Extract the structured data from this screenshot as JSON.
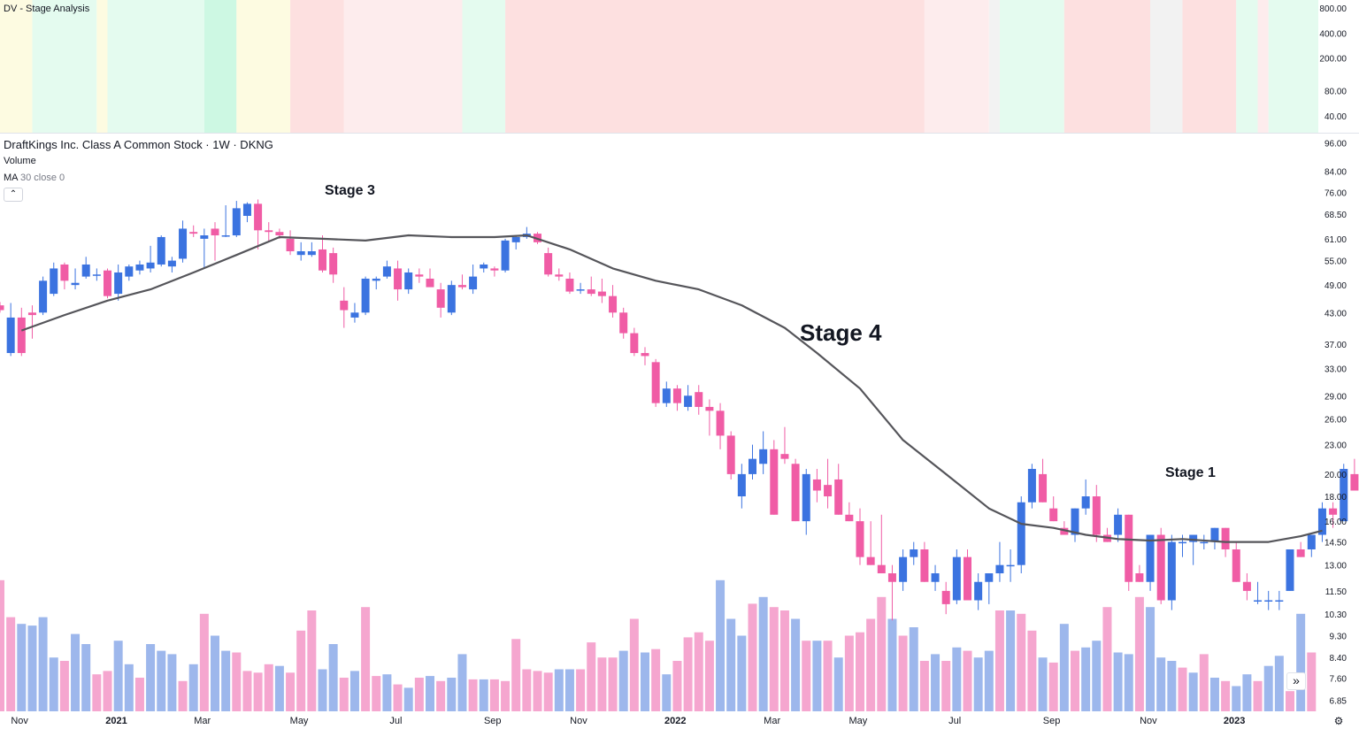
{
  "panel": {
    "label": "DV - Stage Analysis"
  },
  "header": {
    "title": "DraftKings Inc. Class A Common Stock · 1W · DKNG",
    "volume_label": "Volume",
    "ma_label": "MA",
    "ma_params": "30 close 0"
  },
  "annotations": [
    {
      "text": "Stage 3",
      "size": "medium"
    },
    {
      "text": "Stage 4",
      "size": "large"
    },
    {
      "text": "Stage 1",
      "size": "medium"
    }
  ],
  "colors": {
    "up": "#3b73e0",
    "down": "#f05ca5",
    "ma": "#55555a",
    "vol_up": "#9db7ec",
    "vol_down": "#f5a6cf"
  },
  "icons": {
    "collapse": "chevron-up-icon",
    "scroll": "double-chevron-right-icon",
    "settings": "gear-icon"
  },
  "chart_data": {
    "type": "candlestick",
    "symbol": "DKNG",
    "interval": "1W",
    "x_ticks": [
      "Nov",
      "2021",
      "Mar",
      "May",
      "Jul",
      "Sep",
      "Nov",
      "2022",
      "Mar",
      "May",
      "Jul",
      "Sep",
      "Nov",
      "2023"
    ],
    "price_ticks": [
      "96.00",
      "84.00",
      "76.00",
      "68.50",
      "61.00",
      "55.00",
      "49.00",
      "43.00",
      "37.00",
      "33.00",
      "29.00",
      "26.00",
      "23.00",
      "20.00",
      "18.00",
      "16.00",
      "14.50",
      "13.00",
      "11.50",
      "10.30",
      "9.30",
      "8.40",
      "7.60",
      "6.85"
    ],
    "panel_ticks": [
      "800.00",
      "400.00",
      "200.00",
      "80.00",
      "40.00"
    ],
    "price_scale": "log",
    "stage_bands": [
      {
        "color": "#fdfbe1",
        "weeks": 3
      },
      {
        "color": "#e4fbef",
        "weeks": 6
      },
      {
        "color": "#fdfbe1",
        "weeks": 1
      },
      {
        "color": "#e4fbef",
        "weeks": 9
      },
      {
        "color": "#cdf8e3",
        "weeks": 3
      },
      {
        "color": "#fdfbe1",
        "weeks": 5
      },
      {
        "color": "#fde0e0",
        "weeks": 5
      },
      {
        "color": "#fdeced",
        "weeks": 11
      },
      {
        "color": "#e4fbef",
        "weeks": 4
      },
      {
        "color": "#fde0e0",
        "weeks": 39
      },
      {
        "color": "#fdeced",
        "weeks": 6
      },
      {
        "color": "#f2f2f2",
        "weeks": 1
      },
      {
        "color": "#e4fbef",
        "weeks": 6
      },
      {
        "color": "#fde0e0",
        "weeks": 8
      },
      {
        "color": "#f2f2f2",
        "weeks": 3
      },
      {
        "color": "#fde0e0",
        "weeks": 5
      },
      {
        "color": "#e4fbef",
        "weeks": 2
      },
      {
        "color": "#fdeced",
        "weeks": 1
      },
      {
        "color": "#e4fbef",
        "weeks": 5
      }
    ],
    "candles": [
      [
        44.5,
        45.2,
        43.0,
        43.5
      ],
      [
        35.5,
        45.0,
        35.0,
        42.0
      ],
      [
        42.0,
        44.0,
        35.0,
        35.5
      ],
      [
        43.0,
        44.5,
        38.0,
        42.5
      ],
      [
        43.0,
        51.0,
        42.5,
        50.0
      ],
      [
        47.0,
        54.5,
        46.5,
        53.0
      ],
      [
        54.0,
        54.5,
        48.0,
        50.0
      ],
      [
        49.0,
        53.0,
        48.0,
        49.5
      ],
      [
        51.0,
        56.0,
        50.5,
        54.0
      ],
      [
        51.5,
        53.0,
        50.0,
        51.5
      ],
      [
        52.5,
        53.0,
        46.0,
        46.5
      ],
      [
        47.0,
        54.0,
        45.5,
        52.0
      ],
      [
        51.0,
        54.0,
        50.0,
        53.5
      ],
      [
        52.5,
        55.0,
        51.5,
        54.0
      ],
      [
        53.0,
        59.0,
        52.0,
        54.5
      ],
      [
        54.0,
        62.0,
        53.5,
        61.5
      ],
      [
        53.5,
        56.0,
        52.0,
        55.0
      ],
      [
        55.5,
        66.5,
        54.5,
        64.0
      ],
      [
        63.0,
        65.0,
        61.5,
        62.5
      ],
      [
        61.0,
        64.0,
        53.0,
        62.0
      ],
      [
        64.0,
        66.0,
        55.0,
        62.0
      ],
      [
        62.0,
        71.5,
        61.5,
        62.0
      ],
      [
        62.0,
        73.0,
        61.5,
        70.5
      ],
      [
        68.0,
        72.5,
        66.0,
        72.0
      ],
      [
        72.0,
        73.5,
        58.0,
        63.5
      ],
      [
        63.5,
        66.0,
        60.0,
        63.0
      ],
      [
        63.0,
        64.0,
        61.0,
        62.0
      ],
      [
        61.0,
        63.5,
        56.5,
        57.5
      ],
      [
        56.5,
        60.0,
        55.0,
        57.5
      ],
      [
        56.5,
        60.0,
        56.0,
        57.5
      ],
      [
        58.0,
        62.0,
        52.0,
        52.5
      ],
      [
        57.0,
        58.5,
        49.5,
        51.5
      ],
      [
        45.5,
        48.5,
        40.0,
        43.5
      ],
      [
        42.0,
        45.0,
        41.0,
        43.0
      ],
      [
        43.0,
        51.0,
        42.5,
        50.5
      ],
      [
        50.0,
        51.0,
        48.0,
        50.5
      ],
      [
        51.0,
        55.0,
        50.5,
        53.5
      ],
      [
        53.0,
        55.0,
        45.5,
        48.0
      ],
      [
        48.0,
        53.0,
        47.0,
        52.0
      ],
      [
        51.5,
        53.0,
        49.5,
        51.0
      ],
      [
        50.5,
        53.0,
        49.0,
        48.5
      ],
      [
        48.0,
        49.5,
        42.0,
        44.0
      ],
      [
        43.0,
        50.0,
        42.5,
        49.0
      ],
      [
        49.0,
        51.5,
        48.0,
        48.5
      ],
      [
        48.0,
        54.0,
        47.0,
        51.0
      ],
      [
        53.0,
        54.5,
        52.0,
        54.0
      ],
      [
        53.0,
        53.5,
        51.0,
        52.5
      ],
      [
        52.5,
        61.0,
        52.0,
        60.5
      ],
      [
        60.0,
        62.0,
        58.0,
        61.5
      ],
      [
        61.5,
        64.5,
        61.0,
        62.5
      ],
      [
        62.5,
        63.0,
        59.5,
        60.0
      ],
      [
        57.0,
        58.5,
        51.0,
        51.5
      ],
      [
        51.5,
        53.0,
        50.0,
        51.0
      ],
      [
        50.5,
        52.0,
        47.0,
        47.5
      ],
      [
        48.0,
        49.5,
        47.0,
        48.0
      ],
      [
        48.0,
        51.0,
        46.5,
        47.0
      ],
      [
        47.5,
        50.5,
        45.0,
        46.5
      ],
      [
        46.5,
        49.0,
        42.0,
        43.0
      ],
      [
        43.0,
        44.0,
        38.0,
        39.0
      ],
      [
        39.0,
        40.0,
        35.0,
        35.5
      ],
      [
        35.5,
        36.5,
        33.5,
        35.0
      ],
      [
        34.0,
        34.5,
        27.5,
        28.0
      ],
      [
        28.0,
        31.0,
        27.5,
        30.0
      ],
      [
        30.0,
        30.5,
        27.0,
        28.0
      ],
      [
        27.5,
        30.5,
        27.0,
        29.0
      ],
      [
        29.5,
        30.5,
        26.5,
        27.5
      ],
      [
        27.5,
        28.5,
        24.0,
        27.0
      ],
      [
        27.0,
        28.0,
        22.5,
        24.0
      ],
      [
        24.0,
        24.5,
        19.5,
        20.0
      ],
      [
        18.0,
        21.0,
        17.0,
        20.0
      ],
      [
        20.0,
        23.0,
        19.5,
        21.5
      ],
      [
        21.0,
        24.5,
        20.0,
        22.5
      ],
      [
        22.5,
        23.5,
        16.5,
        16.5
      ],
      [
        22.0,
        25.0,
        21.0,
        21.5
      ],
      [
        21.0,
        21.5,
        16.0,
        16.0
      ],
      [
        16.0,
        20.5,
        15.0,
        20.0
      ],
      [
        19.5,
        20.5,
        17.5,
        18.5
      ],
      [
        19.0,
        21.5,
        17.0,
        18.0
      ],
      [
        19.5,
        21.0,
        16.5,
        16.5
      ],
      [
        16.5,
        17.5,
        16.0,
        16.0
      ],
      [
        16.0,
        17.0,
        13.0,
        13.5
      ],
      [
        13.5,
        16.0,
        13.0,
        13.0
      ],
      [
        13.0,
        16.5,
        12.5,
        12.5
      ],
      [
        12.5,
        13.0,
        10.0,
        12.0
      ],
      [
        12.0,
        14.0,
        11.5,
        13.5
      ],
      [
        13.5,
        14.5,
        13.0,
        14.0
      ],
      [
        14.0,
        14.5,
        12.0,
        12.0
      ],
      [
        12.0,
        13.0,
        11.5,
        12.5
      ],
      [
        11.5,
        12.0,
        10.3,
        10.8
      ],
      [
        11.0,
        14.0,
        10.8,
        13.5
      ],
      [
        13.5,
        14.0,
        11.0,
        11.0
      ],
      [
        11.0,
        12.5,
        10.5,
        12.0
      ],
      [
        12.0,
        12.5,
        10.8,
        12.5
      ],
      [
        12.5,
        14.5,
        12.0,
        13.0
      ],
      [
        13.0,
        14.0,
        12.0,
        13.0
      ],
      [
        13.0,
        18.0,
        12.5,
        17.5
      ],
      [
        17.5,
        21.0,
        17.0,
        20.5
      ],
      [
        20.0,
        21.5,
        17.5,
        17.5
      ],
      [
        17.0,
        18.0,
        16.0,
        16.0
      ],
      [
        15.5,
        16.0,
        15.0,
        15.0
      ],
      [
        15.0,
        17.0,
        14.5,
        17.0
      ],
      [
        17.0,
        19.5,
        16.5,
        18.0
      ],
      [
        18.0,
        19.0,
        14.5,
        15.0
      ],
      [
        15.0,
        15.5,
        14.5,
        14.5
      ],
      [
        15.0,
        17.0,
        14.5,
        16.5
      ],
      [
        16.5,
        16.5,
        11.5,
        12.0
      ],
      [
        12.5,
        13.0,
        12.0,
        12.0
      ],
      [
        12.0,
        15.0,
        11.5,
        15.0
      ],
      [
        15.0,
        15.5,
        10.8,
        11.0
      ],
      [
        11.0,
        15.0,
        10.5,
        14.5
      ],
      [
        14.5,
        15.0,
        13.5,
        14.5
      ],
      [
        14.5,
        15.0,
        13.0,
        15.0
      ],
      [
        14.5,
        15.0,
        14.0,
        14.5
      ],
      [
        14.5,
        15.5,
        14.0,
        15.5
      ],
      [
        15.5,
        15.5,
        13.5,
        14.0
      ],
      [
        14.0,
        14.5,
        12.0,
        12.0
      ],
      [
        12.0,
        12.5,
        11.0,
        11.5
      ],
      [
        11.0,
        12.0,
        10.8,
        11.0
      ],
      [
        11.0,
        11.5,
        10.5,
        11.0
      ],
      [
        11.0,
        11.5,
        10.5,
        11.0
      ],
      [
        11.5,
        14.0,
        11.5,
        14.0
      ],
      [
        14.0,
        14.5,
        13.5,
        13.5
      ],
      [
        14.0,
        15.0,
        13.5,
        15.0
      ],
      [
        15.0,
        17.5,
        14.5,
        17.0
      ],
      [
        17.0,
        17.5,
        15.5,
        16.5
      ],
      [
        16.0,
        21.0,
        16.0,
        20.5
      ],
      [
        20.0,
        21.5,
        18.5,
        18.5
      ]
    ],
    "ma30_points": [
      [
        2,
        39.5
      ],
      [
        6,
        42.5
      ],
      [
        10,
        45.5
      ],
      [
        14,
        48.0
      ],
      [
        18,
        52.0
      ],
      [
        22,
        56.5
      ],
      [
        26,
        61.5
      ],
      [
        30,
        61.0
      ],
      [
        34,
        60.5
      ],
      [
        38,
        62.0
      ],
      [
        42,
        61.5
      ],
      [
        46,
        61.5
      ],
      [
        49,
        62.0
      ],
      [
        53,
        58.0
      ],
      [
        57,
        53.0
      ],
      [
        61,
        50.0
      ],
      [
        65,
        48.0
      ],
      [
        69,
        44.5
      ],
      [
        73,
        40.0
      ],
      [
        76,
        35.5
      ],
      [
        80,
        30.0
      ],
      [
        84,
        23.5
      ],
      [
        88,
        20.0
      ],
      [
        92,
        17.0
      ],
      [
        95,
        15.8
      ],
      [
        98,
        15.5
      ],
      [
        101,
        15.0
      ],
      [
        104,
        14.7
      ],
      [
        107,
        14.6
      ],
      [
        110,
        14.7
      ],
      [
        114,
        14.5
      ],
      [
        118,
        14.5
      ],
      [
        121,
        14.9
      ],
      [
        123,
        15.3
      ]
    ],
    "volumes": [
      [
        0,
        0.78
      ],
      [
        0,
        0.56
      ],
      [
        1,
        0.52
      ],
      [
        1,
        0.51
      ],
      [
        1,
        0.56
      ],
      [
        1,
        0.32
      ],
      [
        0,
        0.3
      ],
      [
        1,
        0.46
      ],
      [
        1,
        0.4
      ],
      [
        0,
        0.22
      ],
      [
        0,
        0.24
      ],
      [
        1,
        0.42
      ],
      [
        1,
        0.28
      ],
      [
        0,
        0.2
      ],
      [
        1,
        0.4
      ],
      [
        1,
        0.36
      ],
      [
        1,
        0.34
      ],
      [
        0,
        0.18
      ],
      [
        1,
        0.28
      ],
      [
        0,
        0.58
      ],
      [
        1,
        0.45
      ],
      [
        1,
        0.36
      ],
      [
        0,
        0.35
      ],
      [
        0,
        0.24
      ],
      [
        0,
        0.23
      ],
      [
        0,
        0.28
      ],
      [
        1,
        0.27
      ],
      [
        0,
        0.23
      ],
      [
        0,
        0.48
      ],
      [
        0,
        0.6
      ],
      [
        1,
        0.25
      ],
      [
        1,
        0.4
      ],
      [
        0,
        0.2
      ],
      [
        1,
        0.24
      ],
      [
        0,
        0.62
      ],
      [
        0,
        0.21
      ],
      [
        1,
        0.22
      ],
      [
        0,
        0.16
      ],
      [
        1,
        0.14
      ],
      [
        0,
        0.2
      ],
      [
        1,
        0.21
      ],
      [
        0,
        0.18
      ],
      [
        1,
        0.2
      ],
      [
        1,
        0.34
      ],
      [
        0,
        0.19
      ],
      [
        1,
        0.19
      ],
      [
        0,
        0.19
      ],
      [
        0,
        0.18
      ],
      [
        0,
        0.43
      ],
      [
        0,
        0.25
      ],
      [
        0,
        0.24
      ],
      [
        0,
        0.23
      ],
      [
        1,
        0.25
      ],
      [
        1,
        0.25
      ],
      [
        0,
        0.25
      ],
      [
        0,
        0.41
      ],
      [
        0,
        0.32
      ],
      [
        0,
        0.32
      ],
      [
        1,
        0.36
      ],
      [
        0,
        0.55
      ],
      [
        1,
        0.35
      ],
      [
        0,
        0.37
      ],
      [
        1,
        0.22
      ],
      [
        0,
        0.3
      ],
      [
        0,
        0.44
      ],
      [
        0,
        0.47
      ],
      [
        0,
        0.42
      ],
      [
        1,
        0.78
      ],
      [
        1,
        0.55
      ],
      [
        1,
        0.45
      ],
      [
        0,
        0.64
      ],
      [
        1,
        0.68
      ],
      [
        0,
        0.62
      ],
      [
        0,
        0.6
      ],
      [
        1,
        0.55
      ],
      [
        0,
        0.42
      ],
      [
        1,
        0.42
      ],
      [
        0,
        0.42
      ],
      [
        1,
        0.32
      ],
      [
        0,
        0.45
      ],
      [
        0,
        0.47
      ],
      [
        0,
        0.55
      ],
      [
        0,
        0.68
      ],
      [
        1,
        0.55
      ],
      [
        0,
        0.45
      ],
      [
        1,
        0.5
      ],
      [
        0,
        0.3
      ],
      [
        1,
        0.34
      ],
      [
        0,
        0.3
      ],
      [
        1,
        0.38
      ],
      [
        0,
        0.36
      ],
      [
        1,
        0.32
      ],
      [
        1,
        0.36
      ],
      [
        0,
        0.6
      ],
      [
        1,
        0.6
      ],
      [
        0,
        0.58
      ],
      [
        0,
        0.48
      ],
      [
        1,
        0.32
      ],
      [
        0,
        0.29
      ],
      [
        1,
        0.52
      ],
      [
        0,
        0.36
      ],
      [
        1,
        0.38
      ],
      [
        1,
        0.42
      ],
      [
        0,
        0.62
      ],
      [
        1,
        0.35
      ],
      [
        1,
        0.34
      ],
      [
        0,
        0.68
      ],
      [
        1,
        0.62
      ],
      [
        1,
        0.32
      ],
      [
        1,
        0.3
      ],
      [
        0,
        0.26
      ],
      [
        1,
        0.23
      ],
      [
        0,
        0.34
      ],
      [
        1,
        0.2
      ],
      [
        0,
        0.18
      ],
      [
        1,
        0.15
      ],
      [
        1,
        0.22
      ],
      [
        0,
        0.18
      ],
      [
        1,
        0.27
      ],
      [
        1,
        0.33
      ],
      [
        0,
        0.12
      ],
      [
        1,
        0.58
      ],
      [
        0,
        0.35
      ]
    ]
  }
}
